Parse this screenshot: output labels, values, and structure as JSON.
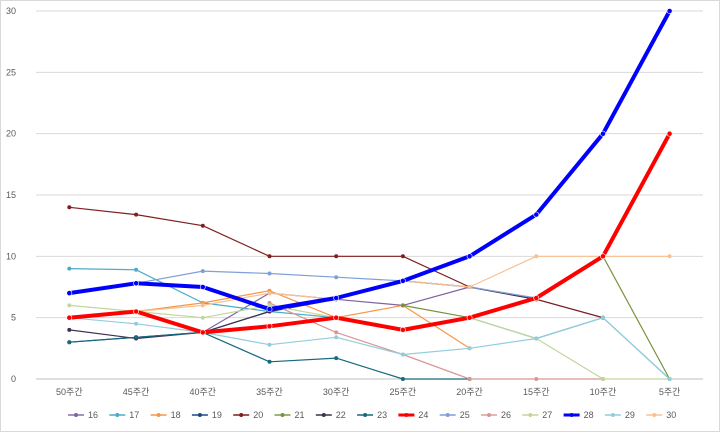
{
  "chart_data": {
    "type": "line",
    "title": "",
    "xlabel": "",
    "ylabel": "",
    "categories": [
      "50주간",
      "45주간",
      "40주간",
      "35주간",
      "30주간",
      "25주간",
      "20주간",
      "15주간",
      "10주간",
      "5주간"
    ],
    "ylim": [
      0,
      30
    ],
    "yticks": [
      "0",
      "5",
      "10",
      "15",
      "20",
      "25",
      "30"
    ],
    "grid": "horizontal",
    "legend_position": "bottom",
    "series": [
      {
        "name": "16",
        "color": "#8064a2",
        "width": 1.2,
        "values": [
          5,
          5.5,
          3.8,
          7,
          6.5,
          6,
          7.5,
          6.5,
          5,
          null
        ]
      },
      {
        "name": "17",
        "color": "#4bacc6",
        "width": 1.2,
        "values": [
          9,
          8.9,
          6.2,
          5.5,
          5,
          4,
          5,
          3.3,
          5,
          0
        ]
      },
      {
        "name": "18",
        "color": "#f79646",
        "width": 1.2,
        "values": [
          5,
          5.5,
          6.2,
          7.2,
          5,
          6,
          2.5,
          null,
          null,
          null
        ]
      },
      {
        "name": "19",
        "color": "#1f497d",
        "width": 1.2,
        "values": [
          3,
          3.4,
          3.8,
          5.5,
          6.5,
          8,
          null,
          null,
          null,
          null
        ]
      },
      {
        "name": "20",
        "color": "#7f1f1f",
        "width": 1.2,
        "values": [
          14,
          13.4,
          12.5,
          10,
          10,
          10,
          7.5,
          6.5,
          5,
          null
        ]
      },
      {
        "name": "21",
        "color": "#77933c",
        "width": 1.2,
        "values": [
          null,
          null,
          null,
          null,
          null,
          6,
          5,
          null,
          10,
          0
        ]
      },
      {
        "name": "22",
        "color": "#403151",
        "width": 1.2,
        "values": [
          4,
          3.3,
          3.8,
          5.5,
          6.5,
          8,
          7.5,
          6.5,
          10,
          20
        ]
      },
      {
        "name": "23",
        "color": "#17697e",
        "width": 1.2,
        "values": [
          3,
          3.4,
          3.8,
          1.4,
          1.7,
          0,
          0,
          null,
          null,
          null
        ]
      },
      {
        "name": "24",
        "color": "#ff0000",
        "width": 4,
        "values": [
          5,
          5.5,
          3.8,
          4.3,
          5,
          4,
          5,
          6.6,
          10,
          20
        ]
      },
      {
        "name": "25",
        "color": "#7f9fd7",
        "width": 1.2,
        "values": [
          7,
          7.8,
          8.8,
          8.6,
          8.3,
          8,
          7.5,
          6.6,
          10,
          20
        ]
      },
      {
        "name": "26",
        "color": "#d99694",
        "width": 1.2,
        "values": [
          null,
          null,
          null,
          6.2,
          3.8,
          2,
          0,
          0,
          0,
          null
        ]
      },
      {
        "name": "27",
        "color": "#c3d69b",
        "width": 1.2,
        "values": [
          6,
          5.5,
          5,
          6,
          5,
          4,
          5,
          3.3,
          0,
          0
        ]
      },
      {
        "name": "28",
        "color": "#0000ff",
        "width": 4,
        "values": [
          7,
          7.8,
          7.5,
          5.7,
          6.6,
          8,
          10,
          13.4,
          20,
          30
        ]
      },
      {
        "name": "29",
        "color": "#93cddd",
        "width": 1.2,
        "values": [
          5,
          4.5,
          3.8,
          2.8,
          3.4,
          2,
          2.5,
          3.3,
          5,
          0
        ]
      },
      {
        "name": "30",
        "color": "#fac090",
        "width": 1.2,
        "values": [
          5,
          5.5,
          6,
          7,
          6.5,
          8,
          7.5,
          10,
          10,
          10
        ]
      }
    ]
  }
}
